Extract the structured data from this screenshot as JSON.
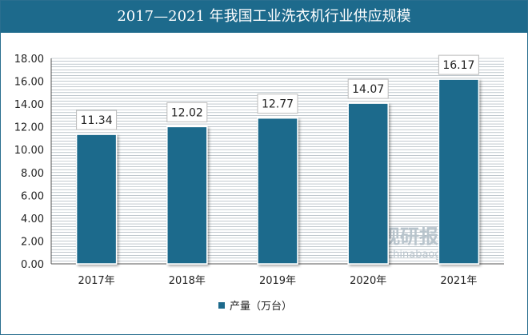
{
  "chart_data": {
    "type": "bar",
    "title": "2017—2021 年我国工业洗衣机行业供应规模",
    "categories": [
      "2017年",
      "2018年",
      "2019年",
      "2020年",
      "2021年"
    ],
    "series": [
      {
        "name": "产量（万台）",
        "values": [
          11.34,
          12.02,
          12.77,
          14.07,
          16.17
        ],
        "color": "#1d6a8c"
      }
    ],
    "data_labels": [
      "11.34",
      "12.02",
      "12.77",
      "14.07",
      "16.17"
    ],
    "ylim": [
      0,
      18
    ],
    "yticks": [
      "0.00",
      "2.00",
      "4.00",
      "6.00",
      "8.00",
      "10.00",
      "12.00",
      "14.00",
      "16.00",
      "18.00"
    ],
    "grid": true,
    "legend_position": "bottom"
  },
  "watermark": {
    "cn": "观研报告网",
    "en": "chinabaogao.com"
  },
  "colors": {
    "title_bg": "#1d6a8c",
    "bar": "#1d6a8c",
    "grid": "#9aa8b0"
  }
}
